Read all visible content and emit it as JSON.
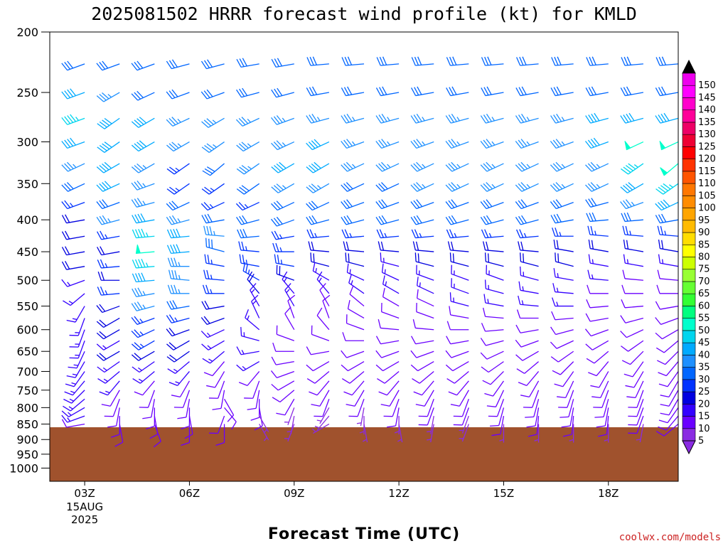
{
  "chart_data": {
    "type": "wind_barb_time_height",
    "title": "2025081502 HRRR forecast wind profile (kt) for KMLD",
    "xlabel": "Forecast Time (UTC)",
    "credit": "coolwx.com/models",
    "yticks": [
      200,
      250,
      300,
      350,
      400,
      450,
      500,
      550,
      600,
      650,
      700,
      750,
      800,
      850,
      900,
      950,
      1000
    ],
    "ylim": [
      200,
      1050
    ],
    "y_scale": "log",
    "y_reversed": true,
    "xticks": [
      {
        "hour": 3,
        "label": "03Z",
        "sublabels": [
          "15AUG",
          "2025"
        ]
      },
      {
        "hour": 6,
        "label": "06Z",
        "sublabels": []
      },
      {
        "hour": 9,
        "label": "09Z",
        "sublabels": []
      },
      {
        "hour": 12,
        "label": "12Z",
        "sublabels": []
      },
      {
        "hour": 15,
        "label": "15Z",
        "sublabels": []
      },
      {
        "hour": 18,
        "label": "18Z",
        "sublabels": []
      }
    ],
    "xlim": [
      2.0,
      20.0
    ],
    "terrain_top_hpa": 860,
    "terrain_color": "#a0522d",
    "colorbar": {
      "min": 0,
      "max": 155,
      "step": 5,
      "labels": [
        5,
        10,
        15,
        20,
        25,
        30,
        35,
        40,
        45,
        50,
        55,
        60,
        65,
        70,
        75,
        80,
        85,
        90,
        95,
        100,
        105,
        110,
        115,
        120,
        125,
        130,
        135,
        140,
        145,
        150
      ],
      "colors": [
        "#8a2be2",
        "#6a00ff",
        "#3300ff",
        "#0000e0",
        "#0033ff",
        "#0066ff",
        "#1e90ff",
        "#00aaff",
        "#00d5ee",
        "#00ffcc",
        "#00ff80",
        "#33ff33",
        "#66ff33",
        "#99ff33",
        "#ccff00",
        "#ffff00",
        "#ffdd00",
        "#ffbb00",
        "#ffa500",
        "#ff8c00",
        "#ff7700",
        "#ff5500",
        "#ff3300",
        "#ff0000",
        "#ee0033",
        "#ee0066",
        "#ff0099",
        "#ff00cc",
        "#ff00ff",
        "#ee00ee"
      ],
      "arrow_low_color": "#8a2be2",
      "arrow_high_color": "#000000"
    },
    "barb_columns_hours": [
      3,
      4,
      5,
      6,
      7,
      8,
      9,
      10,
      11,
      12,
      13,
      14,
      15,
      16,
      17,
      18,
      19,
      20
    ],
    "barb_levels_hpa": [
      225,
      250,
      275,
      300,
      325,
      350,
      375,
      400,
      425,
      450,
      475,
      500,
      525,
      550,
      575,
      600,
      625,
      650,
      675,
      700,
      725,
      750,
      775,
      800,
      825,
      850
    ],
    "winds_kt": [
      [
        30,
        40,
        45,
        40,
        35,
        30,
        25,
        20,
        20,
        20,
        20,
        15,
        15,
        15,
        15,
        15,
        15,
        15,
        15,
        15,
        15,
        15,
        15,
        15,
        15,
        10
      ],
      [
        30,
        35,
        40,
        40,
        40,
        40,
        30,
        35,
        25,
        20,
        25,
        20,
        25,
        20,
        20,
        20,
        15,
        20,
        15,
        15,
        15,
        10,
        10,
        10,
        10,
        10
      ],
      [
        30,
        30,
        40,
        40,
        35,
        35,
        35,
        40,
        45,
        50,
        45,
        40,
        35,
        35,
        25,
        25,
        25,
        20,
        15,
        15,
        10,
        10,
        10,
        10,
        10,
        10
      ],
      [
        30,
        30,
        35,
        35,
        25,
        25,
        30,
        35,
        40,
        40,
        35,
        35,
        35,
        30,
        25,
        20,
        20,
        20,
        15,
        15,
        10,
        10,
        10,
        10,
        10,
        10
      ],
      [
        30,
        30,
        35,
        35,
        30,
        25,
        25,
        30,
        35,
        30,
        25,
        25,
        25,
        20,
        20,
        15,
        15,
        15,
        10,
        10,
        10,
        10,
        10,
        10,
        10,
        10
      ],
      [
        30,
        30,
        35,
        35,
        35,
        30,
        25,
        30,
        30,
        25,
        25,
        25,
        20,
        15,
        15,
        15,
        15,
        15,
        15,
        10,
        10,
        10,
        10,
        10,
        5,
        5
      ],
      [
        30,
        30,
        35,
        35,
        40,
        35,
        30,
        30,
        25,
        25,
        25,
        20,
        15,
        15,
        10,
        10,
        10,
        10,
        10,
        10,
        10,
        10,
        10,
        5,
        5,
        5
      ],
      [
        30,
        30,
        35,
        40,
        40,
        35,
        30,
        30,
        25,
        20,
        20,
        15,
        15,
        10,
        10,
        10,
        10,
        10,
        10,
        10,
        10,
        10,
        10,
        5,
        5,
        5
      ],
      [
        30,
        30,
        35,
        35,
        35,
        30,
        30,
        30,
        25,
        20,
        20,
        15,
        15,
        10,
        10,
        10,
        10,
        10,
        10,
        10,
        10,
        10,
        10,
        5,
        5,
        5
      ],
      [
        30,
        30,
        35,
        35,
        35,
        30,
        30,
        30,
        25,
        20,
        15,
        15,
        15,
        10,
        10,
        10,
        10,
        10,
        10,
        10,
        10,
        10,
        10,
        10,
        5,
        5
      ],
      [
        30,
        30,
        35,
        35,
        35,
        35,
        30,
        30,
        25,
        20,
        20,
        15,
        15,
        10,
        10,
        10,
        10,
        10,
        10,
        10,
        10,
        10,
        10,
        10,
        5,
        5
      ],
      [
        30,
        30,
        35,
        35,
        35,
        35,
        30,
        30,
        25,
        20,
        20,
        15,
        15,
        15,
        10,
        10,
        10,
        10,
        10,
        10,
        10,
        10,
        10,
        10,
        5,
        5
      ],
      [
        30,
        30,
        35,
        35,
        35,
        35,
        30,
        30,
        25,
        20,
        20,
        15,
        15,
        15,
        10,
        10,
        10,
        10,
        10,
        10,
        10,
        10,
        10,
        10,
        10,
        5
      ],
      [
        30,
        30,
        35,
        35,
        35,
        35,
        30,
        30,
        25,
        20,
        20,
        15,
        15,
        15,
        10,
        10,
        10,
        10,
        10,
        10,
        10,
        10,
        10,
        10,
        10,
        5
      ],
      [
        30,
        30,
        35,
        35,
        35,
        35,
        30,
        30,
        25,
        20,
        20,
        15,
        15,
        15,
        10,
        10,
        10,
        10,
        10,
        10,
        10,
        10,
        10,
        10,
        10,
        5
      ],
      [
        30,
        30,
        40,
        40,
        35,
        35,
        30,
        30,
        25,
        20,
        15,
        15,
        10,
        10,
        10,
        10,
        10,
        10,
        10,
        10,
        10,
        10,
        10,
        10,
        10,
        5
      ],
      [
        30,
        30,
        40,
        50,
        45,
        40,
        35,
        30,
        25,
        20,
        15,
        10,
        10,
        10,
        10,
        10,
        10,
        10,
        10,
        10,
        10,
        10,
        10,
        10,
        10,
        5
      ],
      [
        30,
        30,
        40,
        50,
        50,
        45,
        40,
        30,
        25,
        20,
        15,
        10,
        10,
        10,
        10,
        10,
        10,
        10,
        10,
        10,
        10,
        10,
        10,
        10,
        10,
        10
      ]
    ],
    "dirs_deg": [
      [
        250,
        250,
        250,
        250,
        245,
        245,
        250,
        260,
        260,
        260,
        260,
        250,
        230,
        210,
        200,
        200,
        200,
        205,
        210,
        215,
        220,
        225,
        230,
        240,
        250,
        260
      ],
      [
        250,
        240,
        235,
        235,
        240,
        245,
        250,
        255,
        260,
        260,
        265,
        270,
        265,
        250,
        240,
        240,
        240,
        240,
        235,
        230,
        220,
        210,
        200,
        190,
        180,
        170
      ],
      [
        250,
        245,
        240,
        240,
        240,
        250,
        255,
        260,
        265,
        265,
        265,
        265,
        260,
        255,
        250,
        245,
        240,
        240,
        235,
        230,
        220,
        200,
        190,
        180,
        170,
        160
      ],
      [
        255,
        250,
        245,
        240,
        235,
        235,
        245,
        255,
        265,
        265,
        270,
        275,
        270,
        260,
        255,
        250,
        240,
        235,
        230,
        220,
        210,
        200,
        190,
        180,
        170,
        180
      ],
      [
        255,
        250,
        240,
        235,
        230,
        235,
        245,
        260,
        275,
        285,
        280,
        275,
        270,
        260,
        250,
        245,
        240,
        230,
        220,
        210,
        200,
        190,
        150,
        140,
        200,
        180
      ],
      [
        260,
        255,
        245,
        240,
        235,
        235,
        245,
        255,
        265,
        275,
        280,
        300,
        320,
        330,
        335,
        310,
        285,
        260,
        240,
        220,
        200,
        190,
        180,
        170,
        150,
        150
      ],
      [
        260,
        255,
        250,
        245,
        240,
        240,
        245,
        250,
        260,
        270,
        280,
        290,
        320,
        330,
        340,
        330,
        290,
        270,
        260,
        250,
        240,
        230,
        210,
        200,
        190,
        200
      ],
      [
        265,
        260,
        255,
        245,
        240,
        240,
        245,
        255,
        265,
        275,
        285,
        300,
        320,
        330,
        340,
        320,
        290,
        260,
        240,
        230,
        220,
        210,
        200,
        210,
        220,
        240
      ],
      [
        265,
        260,
        255,
        250,
        245,
        245,
        250,
        255,
        265,
        275,
        285,
        295,
        305,
        310,
        300,
        290,
        270,
        250,
        240,
        230,
        220,
        210,
        200,
        190,
        180,
        170
      ],
      [
        265,
        260,
        255,
        250,
        245,
        245,
        250,
        255,
        265,
        275,
        285,
        295,
        300,
        300,
        290,
        275,
        260,
        250,
        240,
        230,
        220,
        210,
        200,
        190,
        180,
        170
      ],
      [
        265,
        260,
        255,
        250,
        245,
        245,
        250,
        255,
        265,
        275,
        285,
        290,
        295,
        295,
        290,
        275,
        260,
        250,
        240,
        230,
        220,
        210,
        200,
        200,
        190,
        190
      ],
      [
        265,
        260,
        255,
        250,
        245,
        245,
        250,
        255,
        265,
        275,
        285,
        290,
        290,
        285,
        280,
        270,
        260,
        250,
        240,
        230,
        220,
        210,
        200,
        200,
        200,
        200
      ],
      [
        265,
        260,
        255,
        250,
        245,
        245,
        250,
        255,
        265,
        275,
        285,
        290,
        285,
        280,
        275,
        265,
        255,
        245,
        235,
        225,
        215,
        205,
        200,
        195,
        190,
        180
      ],
      [
        265,
        260,
        255,
        250,
        245,
        245,
        250,
        255,
        265,
        275,
        285,
        285,
        280,
        275,
        270,
        260,
        250,
        240,
        230,
        220,
        210,
        200,
        195,
        190,
        185,
        180
      ],
      [
        265,
        260,
        255,
        250,
        245,
        245,
        250,
        260,
        270,
        280,
        285,
        280,
        275,
        270,
        265,
        255,
        245,
        235,
        225,
        215,
        205,
        200,
        195,
        190,
        185,
        180
      ],
      [
        265,
        260,
        255,
        250,
        245,
        245,
        255,
        265,
        275,
        280,
        280,
        275,
        270,
        265,
        260,
        250,
        240,
        230,
        220,
        210,
        205,
        200,
        195,
        190,
        185,
        180
      ],
      [
        265,
        260,
        255,
        245,
        235,
        240,
        250,
        265,
        275,
        280,
        280,
        275,
        270,
        265,
        255,
        245,
        235,
        225,
        215,
        210,
        205,
        200,
        200,
        200,
        200,
        190
      ],
      [
        265,
        260,
        255,
        245,
        230,
        235,
        245,
        260,
        275,
        280,
        280,
        275,
        270,
        260,
        250,
        240,
        230,
        225,
        220,
        215,
        210,
        210,
        210,
        215,
        220,
        230
      ]
    ]
  }
}
